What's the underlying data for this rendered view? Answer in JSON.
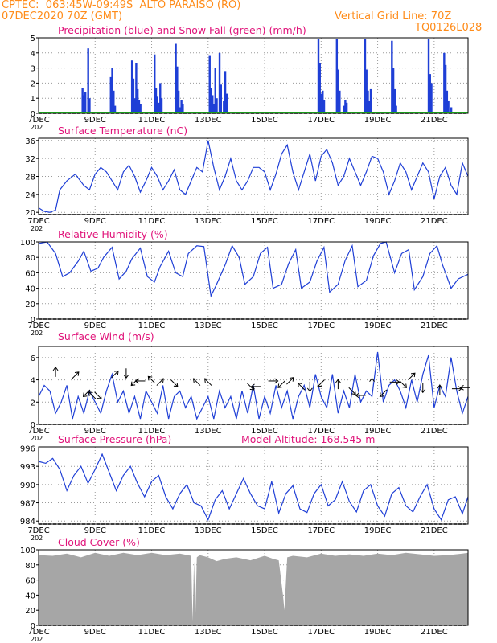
{
  "header": {
    "line1": "CPTEC:  063:45W-09:49S  ALTO PARAISO (RO)",
    "line2": "07DEC2020 70Z (GMT)",
    "right1": "Vertical Grid Line: 70Z",
    "right2": "TQ0126L028"
  },
  "colors": {
    "header": "#ff8c1a",
    "title": "#e0147a",
    "series": "#1f3fd6",
    "snow": "#1a9a1a",
    "cloud": "#a6a6a6",
    "grid": "#9a9a9a"
  },
  "x_axis": {
    "tick_labels": [
      "7DEC",
      "9DEC",
      "11DEC",
      "13DEC",
      "15DEC",
      "17DEC",
      "19DEC",
      "21DEC"
    ],
    "tick_days": [
      7,
      9,
      11,
      13,
      15,
      17,
      19,
      21
    ],
    "range_days": [
      7,
      22.2
    ],
    "year_fragment": "202"
  },
  "chart_data": [
    {
      "id": "precip",
      "type": "bar",
      "title": "Precipitation (blue) and Snow Fall (green) (mm/h)",
      "ylim": [
        0,
        5
      ],
      "yticks": [
        0,
        1,
        2,
        3,
        4,
        5
      ],
      "series": [
        {
          "name": "Precipitation",
          "x": [
            8.55,
            8.6,
            8.65,
            8.75,
            8.8,
            9.55,
            9.6,
            9.65,
            9.7,
            10.3,
            10.35,
            10.4,
            10.45,
            10.5,
            10.55,
            10.6,
            11.1,
            11.15,
            11.2,
            11.25,
            11.3,
            11.35,
            11.85,
            11.9,
            11.95,
            12.0,
            12.05,
            12.1,
            13.05,
            13.1,
            13.15,
            13.2,
            13.25,
            13.3,
            13.4,
            13.45,
            13.55,
            13.6,
            13.65,
            16.9,
            16.95,
            17.0,
            17.05,
            17.1,
            17.55,
            17.6,
            17.65,
            17.8,
            17.85,
            17.9,
            18.55,
            18.6,
            18.65,
            18.7,
            18.75,
            19.5,
            19.55,
            19.6,
            19.65,
            20.8,
            20.85,
            20.9,
            21.35,
            21.4,
            21.45,
            21.5,
            21.6
          ],
          "values": [
            1.7,
            1.2,
            1.4,
            4.3,
            1.0,
            2.4,
            3.0,
            1.5,
            0.5,
            3.5,
            2.3,
            1.0,
            3.3,
            1.6,
            0.9,
            0.6,
            3.9,
            1.7,
            1.1,
            0.7,
            2.0,
            1.0,
            4.6,
            3.1,
            1.5,
            0.4,
            0.9,
            0.6,
            3.8,
            1.7,
            1.2,
            0.6,
            3.0,
            1.0,
            4.0,
            1.9,
            0.8,
            2.8,
            1.3,
            4.9,
            3.3,
            1.3,
            1.5,
            0.9,
            4.9,
            2.9,
            1.5,
            0.5,
            0.9,
            0.7,
            4.9,
            2.9,
            1.5,
            0.8,
            1.6,
            4.8,
            3.0,
            1.6,
            0.5,
            4.9,
            2.6,
            2.0,
            4.0,
            3.2,
            1.5,
            0.8,
            0.4
          ]
        },
        {
          "name": "Snow Fall",
          "x": [
            7,
            22.2
          ],
          "values": [
            0,
            0
          ]
        }
      ]
    },
    {
      "id": "temp",
      "type": "line",
      "title": "Surface Temperature (nC)",
      "ylim": [
        19.5,
        36.5
      ],
      "yticks": [
        20,
        24,
        28,
        32,
        36
      ],
      "series": [
        {
          "name": "Surface Temperature",
          "x": [
            7.0,
            7.2,
            7.4,
            7.6,
            7.75,
            8.0,
            8.3,
            8.6,
            8.8,
            9.0,
            9.2,
            9.4,
            9.6,
            9.8,
            10.0,
            10.2,
            10.4,
            10.6,
            10.8,
            11.0,
            11.2,
            11.4,
            11.6,
            11.8,
            12.0,
            12.2,
            12.4,
            12.6,
            12.8,
            13.0,
            13.2,
            13.4,
            13.6,
            13.8,
            14.0,
            14.2,
            14.4,
            14.6,
            14.8,
            15.0,
            15.2,
            15.4,
            15.6,
            15.8,
            16.0,
            16.2,
            16.4,
            16.6,
            16.8,
            17.0,
            17.2,
            17.4,
            17.6,
            17.8,
            18.0,
            18.2,
            18.4,
            18.6,
            18.8,
            19.0,
            19.2,
            19.4,
            19.6,
            19.8,
            20.0,
            20.2,
            20.4,
            20.6,
            20.8,
            21.0,
            21.2,
            21.4,
            21.6,
            21.8,
            22.0,
            22.2
          ],
          "values": [
            21,
            20.2,
            20,
            20.5,
            25,
            27,
            28.5,
            26,
            25,
            28.5,
            30,
            29,
            27,
            25,
            29,
            30.5,
            28,
            24.5,
            27,
            30,
            28,
            25,
            27,
            29.5,
            25,
            24,
            27,
            30,
            29,
            36,
            30,
            25,
            28,
            32,
            27,
            25,
            27,
            30,
            30,
            29,
            25,
            28.5,
            33,
            35,
            29,
            25,
            29,
            33,
            27,
            32.5,
            34,
            31,
            26,
            28,
            32,
            29,
            26,
            29,
            32.5,
            32,
            29,
            24,
            27,
            31,
            29,
            25,
            28,
            31,
            29,
            23,
            28,
            30,
            26,
            24,
            31,
            28
          ]
        }
      ]
    },
    {
      "id": "rh",
      "type": "line",
      "title": "Relative Humidity (%)",
      "ylim": [
        0,
        100
      ],
      "yticks": [
        0,
        20,
        40,
        60,
        80,
        100
      ],
      "series": [
        {
          "name": "Relative Humidity",
          "x": [
            7.0,
            7.3,
            7.6,
            7.85,
            8.1,
            8.4,
            8.6,
            8.85,
            9.1,
            9.3,
            9.6,
            9.85,
            10.1,
            10.3,
            10.6,
            10.85,
            11.1,
            11.3,
            11.6,
            11.85,
            12.1,
            12.3,
            12.6,
            12.85,
            13.1,
            13.3,
            13.6,
            13.85,
            14.1,
            14.3,
            14.6,
            14.85,
            15.1,
            15.3,
            15.6,
            15.85,
            16.1,
            16.3,
            16.6,
            16.85,
            17.1,
            17.3,
            17.6,
            17.85,
            18.1,
            18.3,
            18.6,
            18.85,
            19.1,
            19.3,
            19.6,
            19.85,
            20.1,
            20.3,
            20.6,
            20.85,
            21.1,
            21.3,
            21.6,
            21.85,
            22.2
          ],
          "values": [
            98,
            100,
            85,
            55,
            60,
            75,
            88,
            62,
            66,
            80,
            93,
            52,
            62,
            78,
            92,
            55,
            48,
            68,
            88,
            60,
            55,
            85,
            95,
            94,
            30,
            45,
            70,
            95,
            80,
            45,
            55,
            85,
            93,
            40,
            45,
            72,
            90,
            40,
            48,
            75,
            93,
            35,
            45,
            76,
            95,
            42,
            50,
            82,
            98,
            100,
            60,
            85,
            90,
            38,
            55,
            85,
            95,
            70,
            40,
            52,
            58
          ]
        }
      ]
    },
    {
      "id": "wind",
      "type": "line",
      "title": "Surface Wind (m/s)",
      "ylim": [
        0,
        7
      ],
      "yticks": [
        0,
        2,
        4,
        6
      ],
      "series": [
        {
          "name": "Surface Wind",
          "x": [
            7.0,
            7.2,
            7.4,
            7.6,
            7.8,
            8.0,
            8.2,
            8.4,
            8.6,
            8.8,
            9.0,
            9.2,
            9.4,
            9.6,
            9.8,
            10.0,
            10.2,
            10.4,
            10.6,
            10.8,
            11.0,
            11.2,
            11.4,
            11.6,
            11.8,
            12.0,
            12.2,
            12.4,
            12.6,
            12.8,
            13.0,
            13.2,
            13.4,
            13.6,
            13.8,
            14.0,
            14.2,
            14.4,
            14.6,
            14.8,
            15.0,
            15.2,
            15.4,
            15.6,
            15.8,
            16.0,
            16.2,
            16.4,
            16.6,
            16.8,
            17.0,
            17.2,
            17.4,
            17.6,
            17.8,
            18.0,
            18.2,
            18.4,
            18.6,
            18.8,
            19.0,
            19.2,
            19.4,
            19.6,
            19.8,
            20.0,
            20.2,
            20.4,
            20.6,
            20.8,
            21.0,
            21.2,
            21.4,
            21.6,
            21.8,
            22.0,
            22.2
          ],
          "values": [
            2.5,
            3.5,
            3.0,
            1.0,
            2.0,
            3.5,
            0.5,
            2.5,
            1.0,
            3.0,
            2.0,
            1.0,
            3.0,
            4.5,
            2.0,
            3.0,
            1.0,
            2.5,
            0.5,
            3.0,
            2.0,
            1.0,
            3.5,
            0.5,
            2.5,
            3.0,
            1.5,
            2.5,
            0.5,
            1.5,
            2.5,
            0.5,
            3.0,
            1.5,
            2.5,
            0.5,
            3.0,
            1.0,
            3.5,
            0.5,
            2.5,
            1.0,
            3.5,
            1.5,
            3.0,
            0.5,
            2.5,
            3.5,
            1.5,
            4.5,
            2.5,
            1.5,
            4.5,
            1.0,
            3.0,
            1.5,
            4.5,
            2.0,
            3.0,
            2.5,
            6.5,
            2.0,
            3.5,
            4.0,
            3.0,
            1.5,
            4.0,
            2.0,
            4.5,
            6.2,
            1.5,
            3.5,
            2.5,
            6.0,
            3.0,
            1.0,
            2.5
          ]
        }
      ],
      "arrows": [
        {
          "x": 7.6,
          "y": 4.7,
          "dir": "N"
        },
        {
          "x": 8.3,
          "y": 4.4,
          "dir": "NE"
        },
        {
          "x": 8.7,
          "y": 2.8,
          "dir": "SW"
        },
        {
          "x": 8.9,
          "y": 2.6,
          "dir": "NW"
        },
        {
          "x": 9.1,
          "y": 2.6,
          "dir": "SE"
        },
        {
          "x": 9.7,
          "y": 4.5,
          "dir": "NE"
        },
        {
          "x": 10.1,
          "y": 4.6,
          "dir": "S"
        },
        {
          "x": 10.4,
          "y": 3.8,
          "dir": "SW"
        },
        {
          "x": 10.6,
          "y": 3.9,
          "dir": "W"
        },
        {
          "x": 11.0,
          "y": 4.0,
          "dir": "NW"
        },
        {
          "x": 11.3,
          "y": 3.8,
          "dir": "NE"
        },
        {
          "x": 11.8,
          "y": 3.7,
          "dir": "SE"
        },
        {
          "x": 12.6,
          "y": 3.8,
          "dir": "NW"
        },
        {
          "x": 13.0,
          "y": 3.8,
          "dir": "NW"
        },
        {
          "x": 14.5,
          "y": 3.4,
          "dir": "SE"
        },
        {
          "x": 14.7,
          "y": 3.4,
          "dir": "W"
        },
        {
          "x": 15.3,
          "y": 3.9,
          "dir": "E"
        },
        {
          "x": 15.6,
          "y": 3.6,
          "dir": "SW"
        },
        {
          "x": 15.9,
          "y": 3.9,
          "dir": "NE"
        },
        {
          "x": 16.3,
          "y": 3.4,
          "dir": "NW"
        },
        {
          "x": 16.6,
          "y": 3.4,
          "dir": "S"
        },
        {
          "x": 17.0,
          "y": 3.7,
          "dir": "SW"
        },
        {
          "x": 17.6,
          "y": 3.6,
          "dir": "N"
        },
        {
          "x": 18.1,
          "y": 3.0,
          "dir": "SE"
        },
        {
          "x": 18.4,
          "y": 2.6,
          "dir": "W"
        },
        {
          "x": 18.8,
          "y": 3.7,
          "dir": "N"
        },
        {
          "x": 19.2,
          "y": 2.8,
          "dir": "SW"
        },
        {
          "x": 19.6,
          "y": 3.8,
          "dir": "E"
        },
        {
          "x": 19.9,
          "y": 3.6,
          "dir": "SE"
        },
        {
          "x": 20.2,
          "y": 4.3,
          "dir": "NE"
        },
        {
          "x": 20.6,
          "y": 3.3,
          "dir": "S"
        },
        {
          "x": 21.2,
          "y": 3.1,
          "dir": "N"
        },
        {
          "x": 21.8,
          "y": 3.2,
          "dir": "E"
        },
        {
          "x": 22.1,
          "y": 3.3,
          "dir": "W"
        }
      ]
    },
    {
      "id": "pressure",
      "type": "line",
      "title": "Surface Pressure (hPa)",
      "ylim": [
        983.5,
        996.2
      ],
      "yticks": [
        984,
        987,
        990,
        993,
        996
      ],
      "series": [
        {
          "name": "Surface Pressure",
          "x": [
            7.0,
            7.25,
            7.5,
            7.75,
            8.0,
            8.25,
            8.5,
            8.75,
            9.0,
            9.25,
            9.5,
            9.75,
            10.0,
            10.25,
            10.5,
            10.75,
            11.0,
            11.25,
            11.5,
            11.75,
            12.0,
            12.25,
            12.5,
            12.75,
            13.0,
            13.25,
            13.5,
            13.75,
            14.0,
            14.25,
            14.5,
            14.75,
            15.0,
            15.25,
            15.5,
            15.75,
            16.0,
            16.25,
            16.5,
            16.75,
            17.0,
            17.25,
            17.5,
            17.75,
            18.0,
            18.25,
            18.5,
            18.75,
            19.0,
            19.25,
            19.5,
            19.75,
            20.0,
            20.25,
            20.5,
            20.75,
            21.0,
            21.25,
            21.5,
            21.75,
            22.0,
            22.2
          ],
          "values": [
            993.8,
            993.5,
            994.3,
            992.5,
            989,
            991.5,
            993,
            990.2,
            992.5,
            995,
            992,
            989,
            991.5,
            993,
            990.2,
            988,
            990.5,
            991.5,
            988,
            986,
            988.5,
            990,
            987,
            986.5,
            984.2,
            987.5,
            989,
            986,
            988.5,
            991,
            988.5,
            986.5,
            986,
            990.5,
            985.3,
            988.5,
            989.8,
            986,
            985.4,
            988.5,
            990,
            986.5,
            987.5,
            990.5,
            987.2,
            985.5,
            989,
            990,
            986.5,
            984.8,
            988.5,
            989.5,
            986.5,
            985.5,
            988,
            990,
            986,
            984.2,
            987.5,
            988,
            985.2,
            988
          ]
        }
      ]
    },
    {
      "id": "cloud",
      "type": "area",
      "title": "Cloud Cover (%)",
      "ylim": [
        0,
        100
      ],
      "yticks": [
        0,
        20,
        40,
        60,
        80,
        100
      ],
      "series": [
        {
          "name": "Cloud Cover",
          "x": [
            7.0,
            7.5,
            8.0,
            8.5,
            9.0,
            9.5,
            10.0,
            10.5,
            11.0,
            11.5,
            12.0,
            12.4,
            12.45,
            12.5,
            12.55,
            12.6,
            12.7,
            13.0,
            13.3,
            13.6,
            14.0,
            14.5,
            15.0,
            15.3,
            15.5,
            15.65,
            15.7,
            15.8,
            16.0,
            16.5,
            17.0,
            17.5,
            18.0,
            18.5,
            19.0,
            19.5,
            20.0,
            20.5,
            21.0,
            21.5,
            22.0,
            22.2
          ],
          "values": [
            93,
            92,
            95,
            90,
            96,
            92,
            96,
            93,
            96,
            93,
            95,
            92,
            5,
            85,
            15,
            90,
            93,
            90,
            85,
            88,
            90,
            86,
            92,
            88,
            86,
            40,
            20,
            90,
            92,
            90,
            95,
            92,
            94,
            92,
            95,
            93,
            96,
            94,
            92,
            93,
            95,
            96
          ]
        }
      ]
    }
  ],
  "panel_titles_extra": {
    "model_altitude": "Model Altitude: 168.545 m"
  }
}
